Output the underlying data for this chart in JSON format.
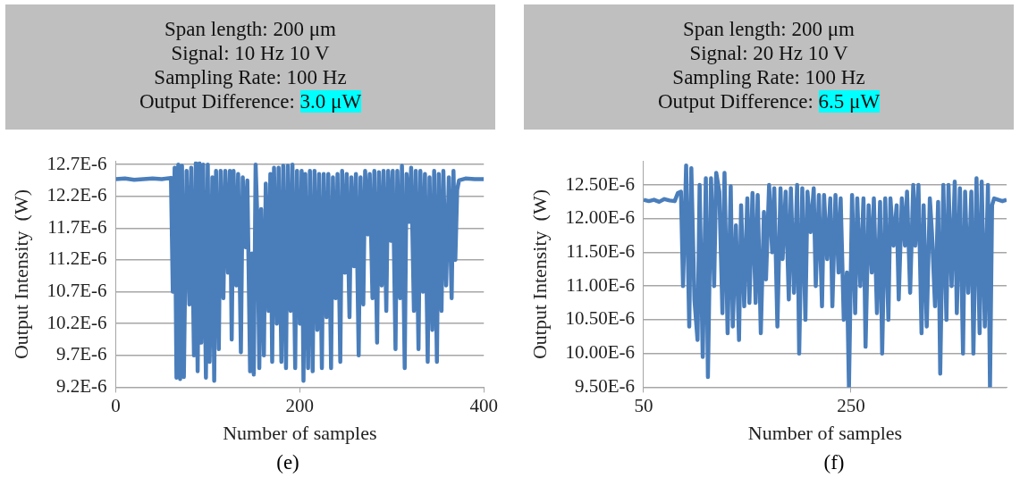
{
  "chart_data": [
    {
      "type": "line",
      "title": "Span length: 200 μm",
      "subtitle": "Signal: 10 Hz 10 V\nSampling Rate: 100 Hz\nOutput Difference: 3.0 μW",
      "xlabel": "Number of samples",
      "ylabel": "Output Intensity  (W)",
      "annotations": [
        "(e)"
      ],
      "grid": "y",
      "xlim": [
        0,
        400
      ],
      "xticks": [
        0,
        200,
        400
      ],
      "ylim": [
        9.2e-06,
        1.275e-05
      ],
      "yticks": [
        {
          "value": 9.2e-06,
          "label": "9.2E-6"
        },
        {
          "value": 9.7e-06,
          "label": "9.7E-6"
        },
        {
          "value": 1.02e-05,
          "label": "10.2E-6"
        },
        {
          "value": 1.07e-05,
          "label": "10.7E-6"
        },
        {
          "value": 1.12e-05,
          "label": "11.2E-6"
        },
        {
          "value": 1.17e-05,
          "label": "11.7E-6"
        },
        {
          "value": 1.22e-05,
          "label": "12.2E-6"
        },
        {
          "value": 1.27e-05,
          "label": "12.7E-6"
        }
      ],
      "x": [
        0,
        10,
        20,
        30,
        40,
        50,
        60,
        62,
        64,
        66,
        68,
        70,
        72,
        74,
        77,
        80,
        82,
        85,
        87,
        89,
        91,
        93,
        95,
        98,
        100,
        102,
        105,
        107,
        109,
        112,
        114,
        117,
        119,
        122,
        124,
        126,
        128,
        131,
        133,
        136,
        138,
        141,
        143,
        146,
        148,
        150,
        152,
        154,
        156,
        158,
        161,
        163,
        166,
        168,
        170,
        172,
        175,
        177,
        180,
        182,
        185,
        187,
        190,
        192,
        195,
        197,
        200,
        202,
        204,
        206,
        209,
        211,
        214,
        216,
        219,
        221,
        224,
        226,
        229,
        231,
        234,
        236,
        239,
        241,
        244,
        246,
        249,
        251,
        254,
        256,
        259,
        261,
        264,
        266,
        269,
        271,
        274,
        276,
        279,
        281,
        284,
        286,
        289,
        291,
        294,
        296,
        299,
        301,
        304,
        306,
        309,
        311,
        314,
        316,
        319,
        321,
        324,
        326,
        329,
        331,
        334,
        336,
        339,
        341,
        344,
        346,
        349,
        351,
        354,
        356,
        359,
        362,
        365,
        367,
        369,
        371,
        373,
        380,
        390,
        400
      ],
      "series": [
        {
          "color": "#4a7ebb",
          "values": [
            1.247e-05,
            1.248e-05,
            1.246e-05,
            1.247e-05,
            1.248e-05,
            1.247e-05,
            1.249e-05,
            1.07e-05,
            1.265e-05,
            9.35e-06,
            1.27e-05,
            9.33e-06,
            1.268e-05,
            9.36e-06,
            1.26e-05,
            1.05e-05,
            1.265e-05,
            9.7e-06,
            1.272e-05,
            9.45e-06,
            1.272e-05,
            9.9e-06,
            1.27e-05,
            9.35e-06,
            1.27e-05,
            9.6e-06,
            1.25e-05,
            9.3e-06,
            1.26e-05,
            9.8e-06,
            1.26e-05,
            1.06e-05,
            1.26e-05,
            1.1e-05,
            1.26e-05,
            9.95e-06,
            1.26e-05,
            1.08e-05,
            1.255e-05,
            9.75e-06,
            1.25e-05,
            1.14e-05,
            1.245e-05,
            9.45e-06,
            1.13e-05,
            9.4e-06,
            1.27e-05,
            1.18e-05,
            9.5e-06,
            1.2e-05,
            9.7e-06,
            1.24e-05,
            1.04e-05,
            1.255e-05,
            9.6e-06,
            1.265e-05,
            1.02e-05,
            1.265e-05,
            9.6e-06,
            1.268e-05,
            9.5e-06,
            1.268e-05,
            1.04e-05,
            1.27e-05,
            9.5e-06,
            1.26e-05,
            1.02e-05,
            1.26e-05,
            9.3e-06,
            1.255e-05,
            9.5e-06,
            1.26e-05,
            9.45e-06,
            1.26e-05,
            1.01e-05,
            1.255e-05,
            9.5e-06,
            1.255e-05,
            1.03e-05,
            1.255e-05,
            9.5e-06,
            1.25e-05,
            1.06e-05,
            1.255e-05,
            9.6e-06,
            1.26e-05,
            1.1e-05,
            1.255e-05,
            1.03e-05,
            1.25e-05,
            1.11e-05,
            1.255e-05,
            9.7e-06,
            1.25e-05,
            1.05e-05,
            1.26e-05,
            1.16e-05,
            1.255e-05,
            1.06e-05,
            1.26e-05,
            9.9e-06,
            1.258e-05,
            1.08e-05,
            1.26e-05,
            1.04e-05,
            1.26e-05,
            1.15e-05,
            1.26e-05,
            9.8e-06,
            1.26e-05,
            1.06e-05,
            1.268e-05,
            9.5e-06,
            1.255e-05,
            1.18e-05,
            1.265e-05,
            1.04e-05,
            1.26e-05,
            9.8e-06,
            1.26e-05,
            1.07e-05,
            1.255e-05,
            9.6e-06,
            1.25e-05,
            1.01e-05,
            1.26e-05,
            9.6e-06,
            1.255e-05,
            1.04e-05,
            1.26e-05,
            1.08e-05,
            1.25e-05,
            1.06e-05,
            1.26e-05,
            1.12e-05,
            1.23e-05,
            1.245e-05,
            1.248e-05,
            1.247e-05,
            1.247e-05
          ]
        }
      ]
    },
    {
      "type": "line",
      "title": "Span length: 200 μm",
      "subtitle": "Signal: 20 Hz 10 V\nSampling Rate: 100 Hz\nOutput Difference: 6.5 μW",
      "xlabel": "Number of samples",
      "ylabel": "Output Intensity  (W)",
      "annotations": [
        "(f)"
      ],
      "grid": "y",
      "xlim": [
        50,
        400
      ],
      "xticks": [
        50,
        250
      ],
      "ylim": [
        9.5e-06,
        1.285e-05
      ],
      "yticks": [
        {
          "value": 9.5e-06,
          "label": "9.50E-6"
        },
        {
          "value": 1e-05,
          "label": "10.00E-6"
        },
        {
          "value": 1.05e-05,
          "label": "10.50E-6"
        },
        {
          "value": 1.1e-05,
          "label": "11.00E-6"
        },
        {
          "value": 1.15e-05,
          "label": "11.50E-6"
        },
        {
          "value": 1.2e-05,
          "label": "12.00E-6"
        },
        {
          "value": 1.25e-05,
          "label": "12.50E-6"
        }
      ],
      "x": [
        50,
        55,
        60,
        65,
        70,
        75,
        80,
        83,
        86,
        88,
        91,
        94,
        96,
        99,
        102,
        104,
        107,
        110,
        112,
        115,
        118,
        120,
        123,
        126,
        128,
        131,
        134,
        136,
        139,
        142,
        144,
        147,
        150,
        152,
        155,
        158,
        160,
        163,
        166,
        168,
        171,
        174,
        176,
        179,
        182,
        184,
        187,
        190,
        192,
        195,
        198,
        200,
        203,
        206,
        208,
        211,
        214,
        216,
        219,
        222,
        224,
        227,
        230,
        232,
        235,
        238,
        240,
        243,
        246,
        248,
        251,
        254,
        256,
        259,
        262,
        264,
        267,
        270,
        272,
        275,
        278,
        280,
        283,
        286,
        288,
        291,
        294,
        296,
        299,
        302,
        304,
        307,
        310,
        312,
        315,
        318,
        320,
        323,
        326,
        328,
        331,
        334,
        336,
        339,
        342,
        344,
        347,
        350,
        352,
        355,
        358,
        360,
        363,
        366,
        368,
        371,
        374,
        376,
        379,
        382,
        384,
        386,
        388,
        392,
        396,
        400
      ],
      "series": [
        {
          "color": "#4a7ebb",
          "values": [
            1.228e-05,
            1.226e-05,
            1.228e-05,
            1.225e-05,
            1.229e-05,
            1.227e-05,
            1.226e-05,
            1.238e-05,
            1.24e-05,
            1.1e-05,
            1.279e-05,
            1.04e-05,
            1.275e-05,
            1.08e-05,
            1.02e-05,
            1.25e-05,
            9.95e-06,
            1.26e-05,
            9.65e-06,
            1.26e-05,
            1.1e-05,
            1.268e-05,
            1.24e-05,
            1.06e-05,
            1.268e-05,
            1.03e-05,
            1.248e-05,
            1.04e-05,
            1.19e-05,
            1.02e-05,
            1.22e-05,
            1.07e-05,
            1.23e-05,
            1.075e-05,
            1.238e-05,
            1.075e-05,
            1.235e-05,
            1.03e-05,
            1.21e-05,
            1.11e-05,
            1.25e-05,
            1.15e-05,
            1.245e-05,
            1.04e-05,
            1.245e-05,
            1.14e-05,
            1.24e-05,
            1.08e-05,
            1.245e-05,
            1.09e-05,
            1.25e-05,
            1e-05,
            1.245e-05,
            1.05e-05,
            1.24e-05,
            1.18e-05,
            1.245e-05,
            1.1e-05,
            1.235e-05,
            1.07e-05,
            1.235e-05,
            1.14e-05,
            1.23e-05,
            1.07e-05,
            1.235e-05,
            1.12e-05,
            1.23e-05,
            1.05e-05,
            1.12e-05,
            9.5e-06,
            1.235e-05,
            1.06e-05,
            1.23e-05,
            1.1e-05,
            1.23e-05,
            1.01e-05,
            1.22e-05,
            1.12e-05,
            1.23e-05,
            1.06e-05,
            1.225e-05,
            1e-05,
            1.23e-05,
            1.05e-05,
            1.23e-05,
            1.16e-05,
            1.22e-05,
            1.08e-05,
            1.23e-05,
            1.16e-05,
            1.24e-05,
            1.09e-05,
            1.25e-05,
            1.16e-05,
            1.25e-05,
            1.03e-05,
            1.22e-05,
            1.04e-05,
            1.23e-05,
            1.18e-05,
            1.07e-05,
            1.225e-05,
            9.7e-06,
            1.25e-05,
            1.05e-05,
            1.25e-05,
            1.1e-05,
            1.255e-05,
            1.06e-05,
            1.245e-05,
            1e-05,
            1.24e-05,
            1.09e-05,
            1.24e-05,
            1e-05,
            1.26e-05,
            1.03e-05,
            1.255e-05,
            1.04e-05,
            1.25e-05,
            9.5e-06,
            1.22e-05,
            1.23e-05,
            1.228e-05,
            1.226e-05,
            1.228e-05
          ]
        }
      ]
    }
  ]
}
